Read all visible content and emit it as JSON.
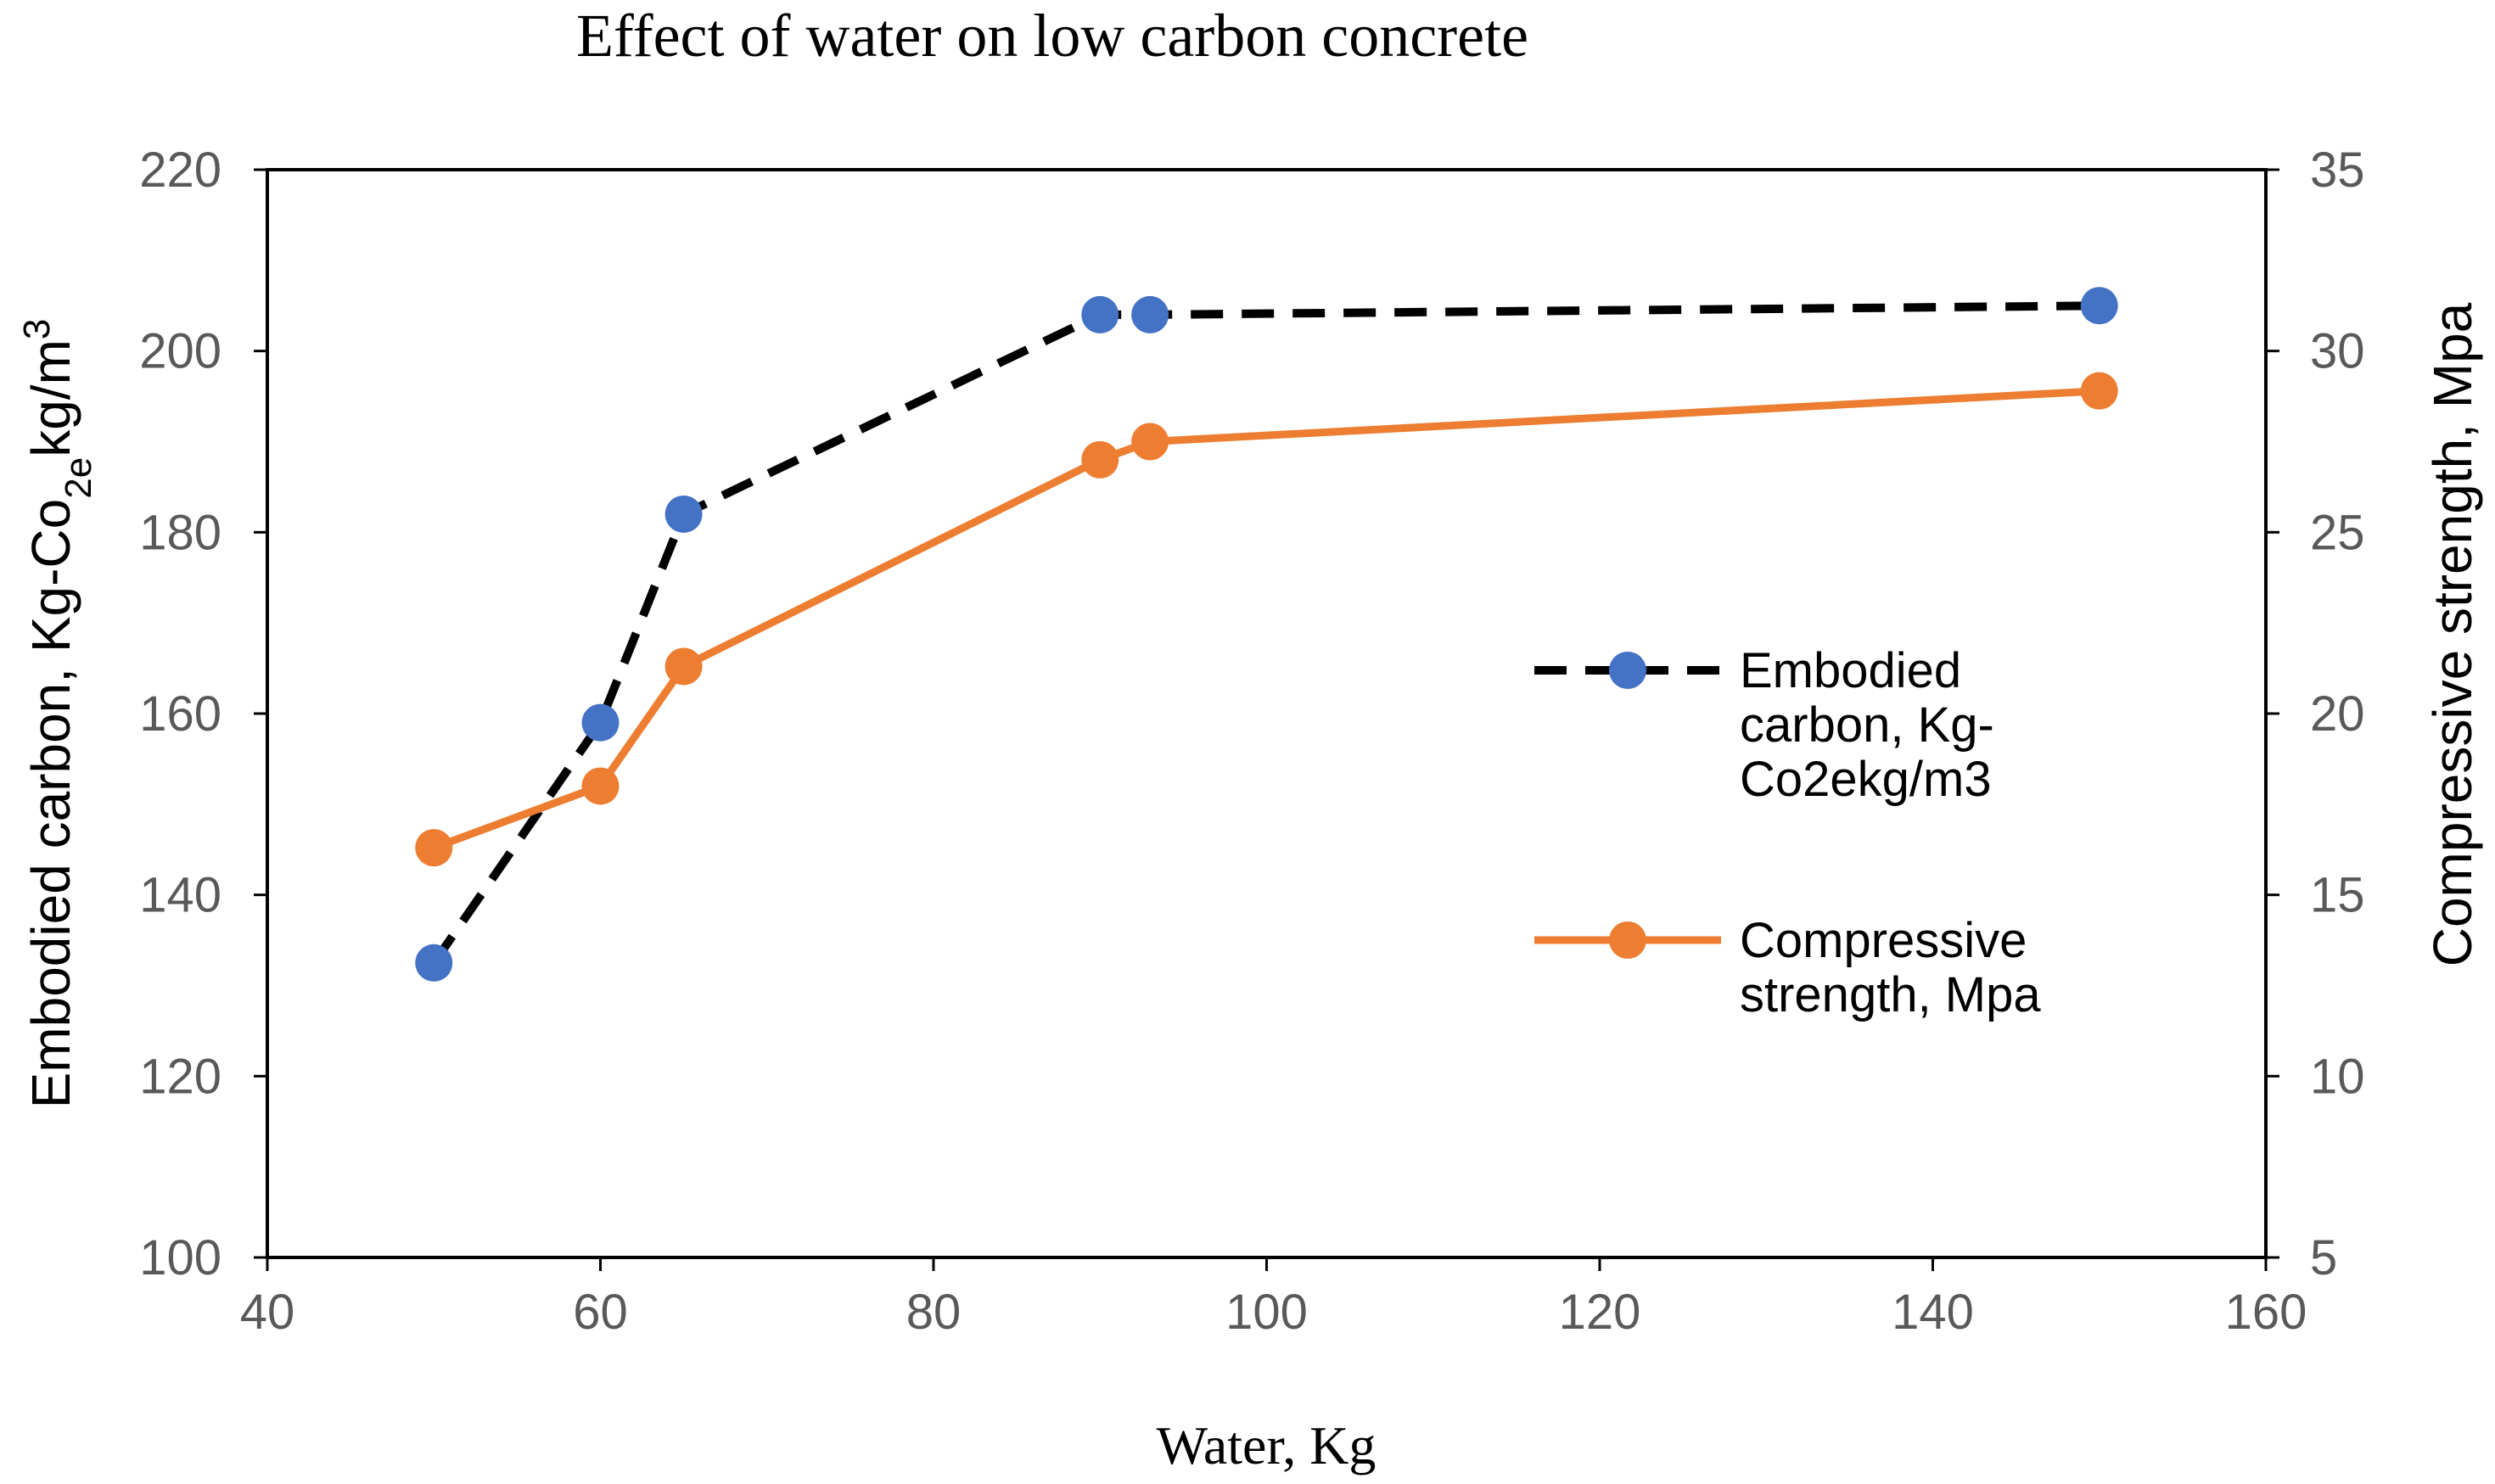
{
  "chart_data": {
    "type": "line",
    "title": "Effect of water on low carbon concrete",
    "xlabel": "Water, Kg",
    "ylabel_left": {
      "main": "Embodied carbon, Kg-Co",
      "sub": "2e",
      "tail": "kg/m",
      "sup": "3"
    },
    "ylabel_right": "Compressive strength, Mpa",
    "xlim": [
      40,
      160
    ],
    "ylim_left": [
      100,
      220
    ],
    "ylim_right": [
      5,
      35
    ],
    "x_ticks": [
      "40",
      "60",
      "80",
      "100",
      "120",
      "140",
      "160"
    ],
    "y_left_ticks": [
      "100",
      "120",
      "140",
      "160",
      "180",
      "200",
      "220"
    ],
    "y_right_ticks": [
      "5",
      "10",
      "15",
      "20",
      "25",
      "30",
      "35"
    ],
    "grid": false,
    "legend_position": "right",
    "series": [
      {
        "name": "Embodied carbon, Kg-Co2ekg/m3",
        "legend_lines": [
          "Embodied",
          "carbon, Kg-",
          "Co2ekg/m3"
        ],
        "axis": "left",
        "style": "dashed",
        "line_color": "#000000",
        "marker_color": "#4472C4",
        "x": [
          50,
          60,
          65,
          90,
          93,
          150
        ],
        "y": [
          132.5,
          159,
          182,
          204,
          204,
          205
        ]
      },
      {
        "name": "Compressive strength, Mpa",
        "legend_lines": [
          "Compressive",
          "strength, Mpa"
        ],
        "axis": "right",
        "style": "solid",
        "line_color": "#ED7D31",
        "marker_color": "#ED7D31",
        "x": [
          50,
          60,
          65,
          90,
          93,
          150
        ],
        "y": [
          16.3,
          18,
          21.3,
          27,
          27.5,
          28.9
        ]
      }
    ]
  }
}
